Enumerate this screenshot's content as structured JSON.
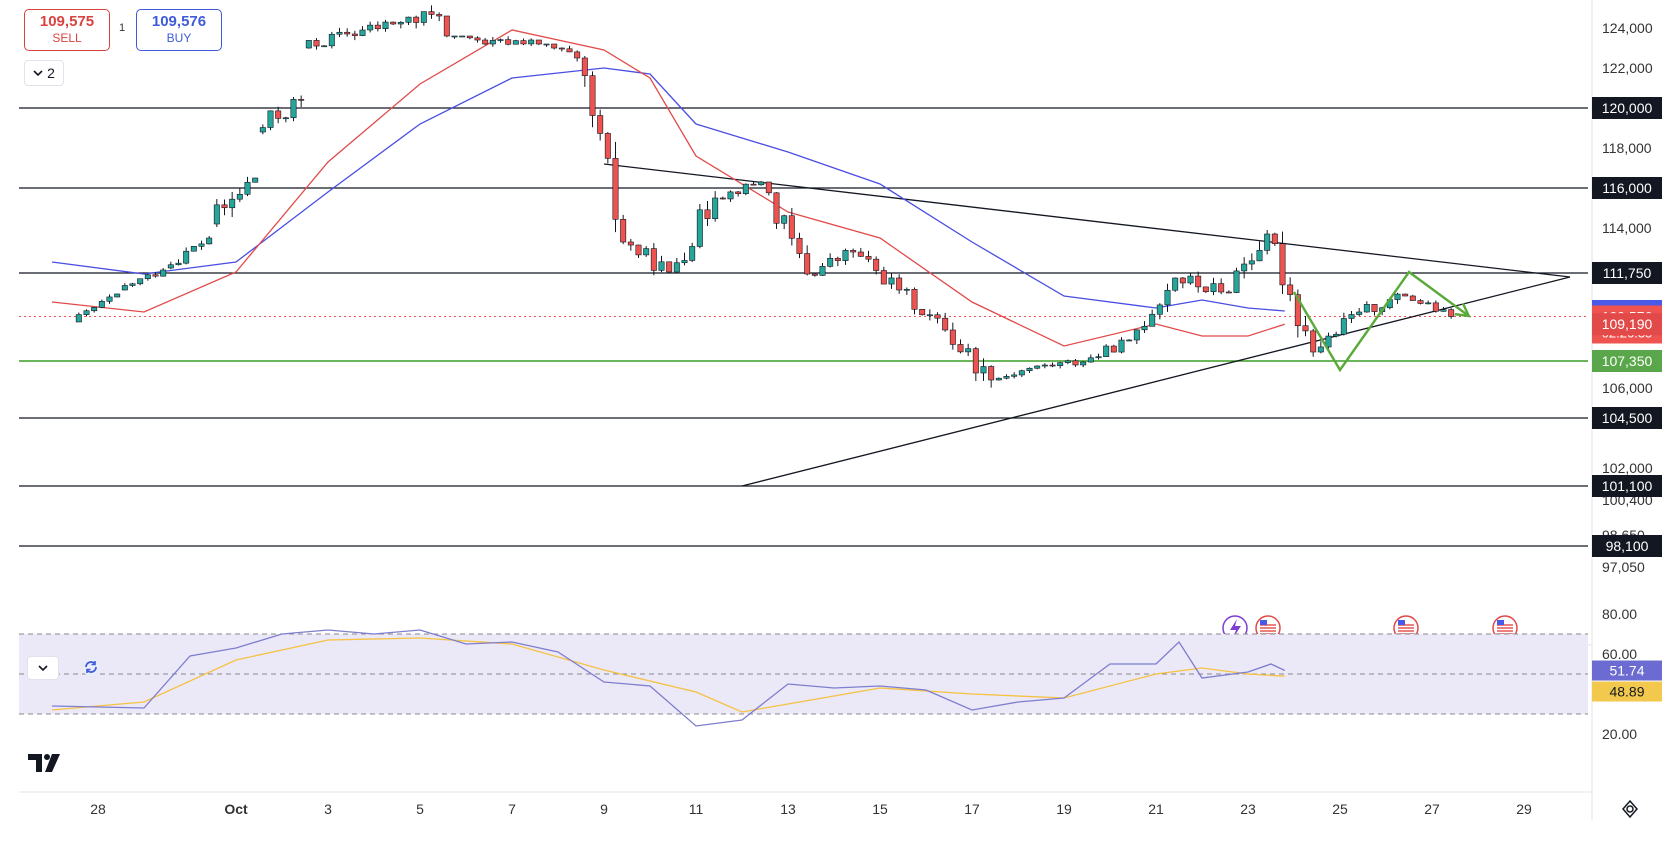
{
  "header": {
    "sell": {
      "price": "109,575",
      "label": "SELL"
    },
    "buy": {
      "price": "109,576",
      "label": "BUY"
    },
    "spread": "1",
    "collapse_count": "2"
  },
  "colors": {
    "up": "#26a69a",
    "down": "#ef5350",
    "ema_fast": "#e24a4a",
    "ema_slow": "#4a4ee2",
    "support": "#3a9d23",
    "projection": "#5aaa3a",
    "rsi": "#7e7ecf",
    "rsi_ma": "#f5c242",
    "rsi_band": "#ebe8f7"
  },
  "icons": [
    "chevron-down-icon",
    "refresh-icon",
    "tradingview-logo-icon",
    "settings-icon",
    "lightning-icon",
    "us-flag-icon"
  ],
  "chart_data": {
    "type": "candlestick",
    "price_axis": [
      "124,000",
      "122,000",
      "118,000",
      "114,000",
      "106,000",
      "102,000",
      "100,400",
      "98,650",
      "97,050"
    ],
    "x_ticks": [
      "28",
      "Oct",
      "3",
      "5",
      "7",
      "9",
      "11",
      "13",
      "15",
      "17",
      "19",
      "21",
      "23",
      "25",
      "27",
      "29"
    ],
    "horizontal_levels": [
      {
        "label": "120,000",
        "value": 120000,
        "color": "black"
      },
      {
        "label": "116,000",
        "value": 116000,
        "color": "black"
      },
      {
        "label": "111,750",
        "value": 111750,
        "color": "black"
      },
      {
        "label": "107,350",
        "value": 107350,
        "color": "green"
      },
      {
        "label": "104,500",
        "value": 104500,
        "color": "black"
      },
      {
        "label": "101,100",
        "value": 101100,
        "color": "black"
      },
      {
        "label": "98,100",
        "value": 98100,
        "color": "black"
      }
    ],
    "price_tags": [
      {
        "label": "109,851",
        "value": 109851,
        "kind": "ema-slow"
      },
      {
        "label": "109,576",
        "value": 109576,
        "kind": "last",
        "countdown": "02:26:35"
      },
      {
        "label": "109,190",
        "value": 109190,
        "kind": "ema-fast"
      }
    ],
    "trendlines": [
      {
        "name": "descending",
        "from": [
          "Oct 9",
          117200
        ],
        "to": [
          "Oct 30",
          111550
        ]
      },
      {
        "name": "ascending",
        "from": [
          "Oct 12",
          101100
        ],
        "to": [
          "Oct 30",
          111550
        ]
      }
    ],
    "projection_path": [
      [
        "Oct 24",
        110800
      ],
      [
        "Oct 25",
        106900
      ],
      [
        "Oct 26.5",
        111800
      ],
      [
        "Oct 27.8",
        109600
      ]
    ],
    "candle_path_daily": [
      [
        109300,
        109300,
        110700,
        110900
      ],
      [
        110900,
        110300,
        111900,
        112000
      ],
      [
        112000,
        111700,
        113500,
        114200
      ],
      [
        114200,
        112900,
        116500,
        118800
      ],
      [
        118800,
        117800,
        120400,
        123000
      ],
      [
        123000,
        121800,
        123700,
        124800
      ],
      [
        123700,
        122200,
        124200,
        125200
      ],
      [
        124200,
        121300,
        124600,
        125600
      ],
      [
        124600,
        120500,
        123200,
        123600
      ],
      [
        123200,
        121400,
        123400,
        123600
      ],
      [
        123400,
        120800,
        122500,
        123200
      ],
      [
        122500,
        111300,
        113300,
        122600
      ],
      [
        113300,
        110300,
        111800,
        114200
      ],
      [
        111800,
        110300,
        115500,
        116300
      ],
      [
        115500,
        114600,
        116300,
        116500
      ],
      [
        116300,
        110300,
        111700,
        116300
      ],
      [
        111700,
        109900,
        112800,
        113600
      ],
      [
        112800,
        109900,
        110900,
        113400
      ],
      [
        110900,
        107700,
        108900,
        111200
      ],
      [
        108900,
        103800,
        106400,
        109300
      ],
      [
        106400,
        106100,
        107100,
        107900
      ],
      [
        107100,
        106200,
        107300,
        108100
      ],
      [
        107300,
        106300,
        108400,
        108600
      ],
      [
        108400,
        107300,
        111500,
        111700
      ],
      [
        111500,
        108100,
        110800,
        111900
      ],
      [
        110800,
        107900,
        113700,
        113900
      ],
      [
        113700,
        106300,
        107800,
        113900
      ],
      [
        107800,
        106300,
        109800,
        110000
      ],
      [
        109800,
        108700,
        110600,
        111400
      ],
      [
        110600,
        109300,
        109576,
        111100
      ]
    ],
    "ema_fast_path": [
      [
        "Sep 27",
        110300
      ],
      [
        "Sep 29",
        109800
      ],
      [
        "Oct 1",
        111800
      ],
      [
        "Oct 3",
        117300
      ],
      [
        "Oct 5",
        121200
      ],
      [
        "Oct 7",
        123900
      ],
      [
        "Oct 9",
        122900
      ],
      [
        "Oct 10",
        121500
      ],
      [
        "Oct 11",
        117600
      ],
      [
        "Oct 13",
        114800
      ],
      [
        "Oct 15",
        113500
      ],
      [
        "Oct 17",
        110300
      ],
      [
        "Oct 19",
        108100
      ],
      [
        "Oct 21",
        109200
      ],
      [
        "Oct 22",
        108600
      ],
      [
        "Oct 23",
        108600
      ],
      [
        "Oct 23.8",
        109190
      ]
    ],
    "ema_slow_path": [
      [
        "Sep 27",
        112300
      ],
      [
        "Sep 29",
        111700
      ],
      [
        "Oct 1",
        112300
      ],
      [
        "Oct 3",
        115800
      ],
      [
        "Oct 5",
        119200
      ],
      [
        "Oct 7",
        121500
      ],
      [
        "Oct 9",
        122000
      ],
      [
        "Oct 10",
        121700
      ],
      [
        "Oct 11",
        119200
      ],
      [
        "Oct 13",
        117800
      ],
      [
        "Oct 15",
        116200
      ],
      [
        "Oct 17",
        113300
      ],
      [
        "Oct 19",
        110600
      ],
      [
        "Oct 21",
        110000
      ],
      [
        "Oct 22",
        110400
      ],
      [
        "Oct 23",
        110000
      ],
      [
        "Oct 23.8",
        109851
      ]
    ],
    "rsi": {
      "axis": [
        "80.00",
        "60.00",
        "20.00"
      ],
      "last_rsi": "51.74",
      "last_ma": "48.89",
      "bands": [
        70,
        50,
        30
      ],
      "rsi_path": [
        [
          "Sep 27",
          34
        ],
        [
          "Sep 29",
          33
        ],
        [
          "Sep 30",
          59
        ],
        [
          "Oct 1",
          63
        ],
        [
          "Oct 2",
          70
        ],
        [
          "Oct 3",
          72
        ],
        [
          "Oct 4",
          70
        ],
        [
          "Oct 5",
          72
        ],
        [
          "Oct 6",
          65
        ],
        [
          "Oct 7",
          66
        ],
        [
          "Oct 8",
          61
        ],
        [
          "Oct 9",
          46
        ],
        [
          "Oct 10",
          44
        ],
        [
          "Oct 11",
          24
        ],
        [
          "Oct 12",
          27
        ],
        [
          "Oct 13",
          45
        ],
        [
          "Oct 14",
          43
        ],
        [
          "Oct 15",
          44
        ],
        [
          "Oct 16",
          42
        ],
        [
          "Oct 17",
          32
        ],
        [
          "Oct 18",
          36
        ],
        [
          "Oct 19",
          38
        ],
        [
          "Oct 20",
          55
        ],
        [
          "Oct 21",
          55
        ],
        [
          "Oct 21.5",
          66
        ],
        [
          "Oct 22",
          48
        ],
        [
          "Oct 23",
          51
        ],
        [
          "Oct 23.5",
          55
        ],
        [
          "Oct 23.8",
          51.74
        ]
      ],
      "ma_path": [
        [
          "Sep 27",
          32
        ],
        [
          "Sep 29",
          36
        ],
        [
          "Oct 1",
          57
        ],
        [
          "Oct 3",
          67
        ],
        [
          "Oct 5",
          68
        ],
        [
          "Oct 7",
          65
        ],
        [
          "Oct 9",
          52
        ],
        [
          "Oct 11",
          41
        ],
        [
          "Oct 12",
          31
        ],
        [
          "Oct 13",
          35
        ],
        [
          "Oct 15",
          43
        ],
        [
          "Oct 17",
          40
        ],
        [
          "Oct 19",
          38
        ],
        [
          "Oct 21",
          50
        ],
        [
          "Oct 22",
          53
        ],
        [
          "Oct 23",
          50
        ],
        [
          "Oct 23.8",
          48.89
        ]
      ]
    }
  }
}
